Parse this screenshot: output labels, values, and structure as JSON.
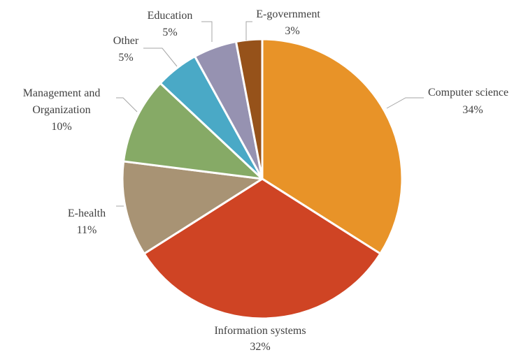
{
  "chart_data": {
    "type": "pie",
    "title": "",
    "start_angle_deg": 0,
    "direction": "clockwise",
    "slices": [
      {
        "label": "Computer science",
        "value": 34,
        "percent_label": "34%",
        "color": "#E89328"
      },
      {
        "label": "Information systems",
        "value": 32,
        "percent_label": "32%",
        "color": "#CF4424"
      },
      {
        "label": "E-health",
        "value": 11,
        "percent_label": "11%",
        "color": "#A89374"
      },
      {
        "label": "Management and Organization",
        "value": 10,
        "percent_label": "10%",
        "color": "#86AA66"
      },
      {
        "label": "Other",
        "value": 5,
        "percent_label": "5%",
        "color": "#4AA9C6"
      },
      {
        "label": "Education",
        "value": 5,
        "percent_label": "5%",
        "color": "#9692B1"
      },
      {
        "label": "E-government",
        "value": 3,
        "percent_label": "3%",
        "color": "#96521A"
      }
    ]
  }
}
